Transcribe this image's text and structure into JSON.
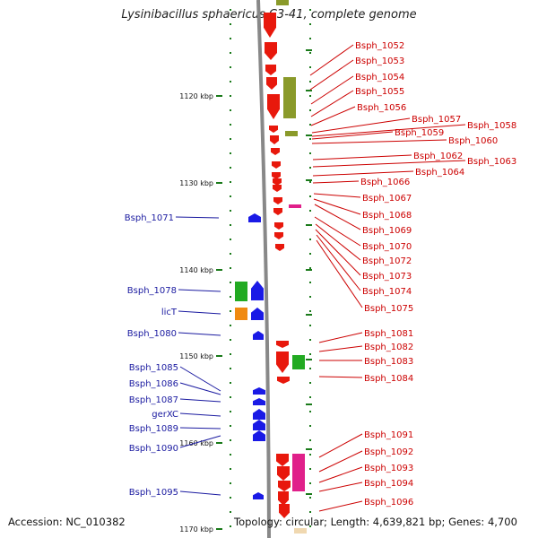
{
  "title": "Lysinibacillus sphaericus C3-41, complete genome",
  "footer": {
    "accession": "Accession: NC_010382",
    "topology": "Topology: circular; Length: 4,639,821 bp; Genes: 4,700"
  },
  "scale_labels": [
    "1120 kbp",
    "1130 kbp",
    "1140 kbp",
    "1150 kbp",
    "1160 kbp",
    "1170 kbp"
  ],
  "right_genes": [
    "Bsph_1052",
    "Bsph_1053",
    "Bsph_1054",
    "Bsph_1055",
    "Bsph_1056",
    "Bsph_1057",
    "Bsph_1058",
    "Bsph_1059",
    "Bsph_1060",
    "Bsph_1062",
    "Bsph_1063",
    "Bsph_1064",
    "Bsph_1066",
    "Bsph_1067",
    "Bsph_1068",
    "Bsph_1069",
    "Bsph_1070",
    "Bsph_1072",
    "Bsph_1073",
    "Bsph_1074",
    "Bsph_1075",
    "Bsph_1081",
    "Bsph_1082",
    "Bsph_1083",
    "Bsph_1084",
    "Bsph_1091",
    "Bsph_1092",
    "Bsph_1093",
    "Bsph_1094",
    "Bsph_1096"
  ],
  "left_genes": [
    "Bsph_1071",
    "Bsph_1078",
    "licT",
    "Bsph_1080",
    "Bsph_1085",
    "Bsph_1086",
    "Bsph_1087",
    "gerXC",
    "Bsph_1089",
    "Bsph_1090",
    "Bsph_1095"
  ],
  "colors": {
    "reverse_strand": "#e8180c",
    "forward_strand": "#1a1ae6",
    "olive": "#8a9a2a",
    "green": "#22aa22",
    "orange": "#f08a10",
    "magenta": "#e0208a",
    "right_label": "#cc0000",
    "left_label": "#1a1aa0",
    "tick": "#1a7a1a"
  }
}
